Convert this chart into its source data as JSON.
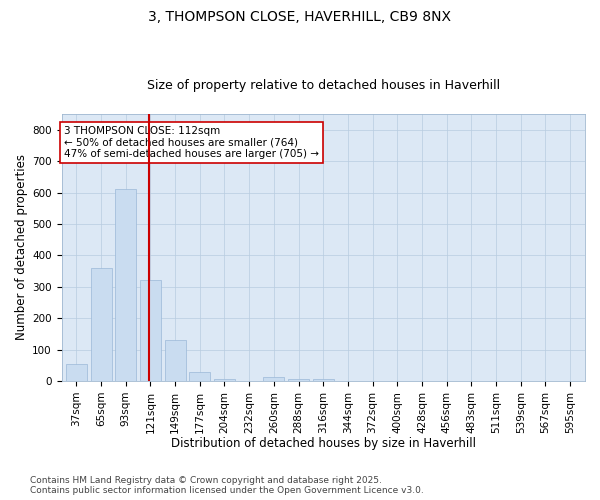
{
  "title1": "3, THOMPSON CLOSE, HAVERHILL, CB9 8NX",
  "title2": "Size of property relative to detached houses in Haverhill",
  "xlabel": "Distribution of detached houses by size in Haverhill",
  "ylabel": "Number of detached properties",
  "categories": [
    "37sqm",
    "65sqm",
    "93sqm",
    "121sqm",
    "149sqm",
    "177sqm",
    "204sqm",
    "232sqm",
    "260sqm",
    "288sqm",
    "316sqm",
    "344sqm",
    "372sqm",
    "400sqm",
    "428sqm",
    "456sqm",
    "483sqm",
    "511sqm",
    "539sqm",
    "567sqm",
    "595sqm"
  ],
  "values": [
    55,
    360,
    610,
    320,
    130,
    30,
    5,
    0,
    12,
    5,
    5,
    0,
    0,
    0,
    0,
    0,
    0,
    0,
    0,
    0,
    0
  ],
  "bar_color": "#c9dcf0",
  "bar_edge_color": "#9ab8d8",
  "vline_color": "#cc0000",
  "vline_index": 2.93,
  "annotation_text": "3 THOMPSON CLOSE: 112sqm\n← 50% of detached houses are smaller (764)\n47% of semi-detached houses are larger (705) →",
  "annotation_box_color": "#ffffff",
  "annotation_box_edge": "#cc0000",
  "plot_bg_color": "#dce8f5",
  "ylim": [
    0,
    850
  ],
  "yticks": [
    0,
    100,
    200,
    300,
    400,
    500,
    600,
    700,
    800
  ],
  "footer_text": "Contains HM Land Registry data © Crown copyright and database right 2025.\nContains public sector information licensed under the Open Government Licence v3.0.",
  "title1_fontsize": 10,
  "title2_fontsize": 9,
  "xlabel_fontsize": 8.5,
  "ylabel_fontsize": 8.5,
  "tick_fontsize": 7.5,
  "annotation_fontsize": 7.5,
  "footer_fontsize": 6.5
}
